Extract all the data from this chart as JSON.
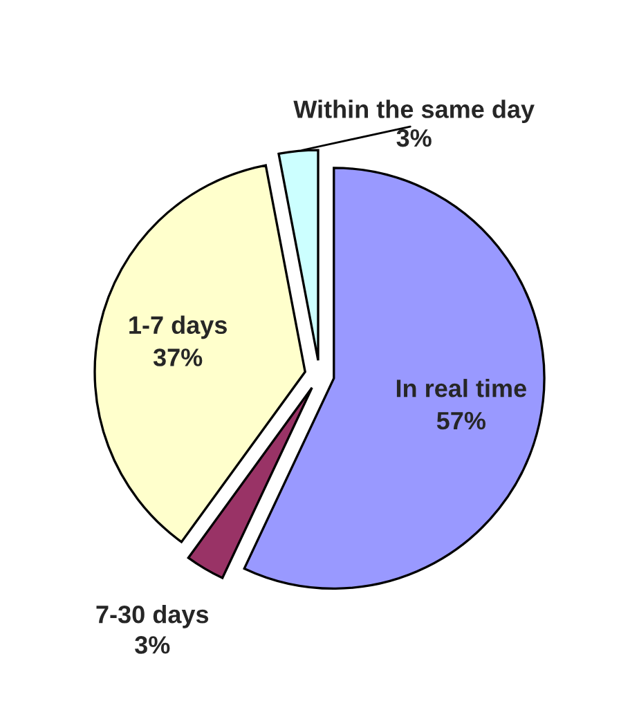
{
  "chart_data": {
    "type": "pie",
    "categories": [
      "In real time",
      "7-30 days",
      "1-7 days",
      "Within the same day"
    ],
    "values": [
      57,
      3,
      37,
      3
    ],
    "value_labels": [
      "57%",
      "3%",
      "37%",
      "3%"
    ],
    "colors": [
      "#9999ff",
      "#993366",
      "#ffffcc",
      "#ccffff"
    ],
    "legend": false
  }
}
